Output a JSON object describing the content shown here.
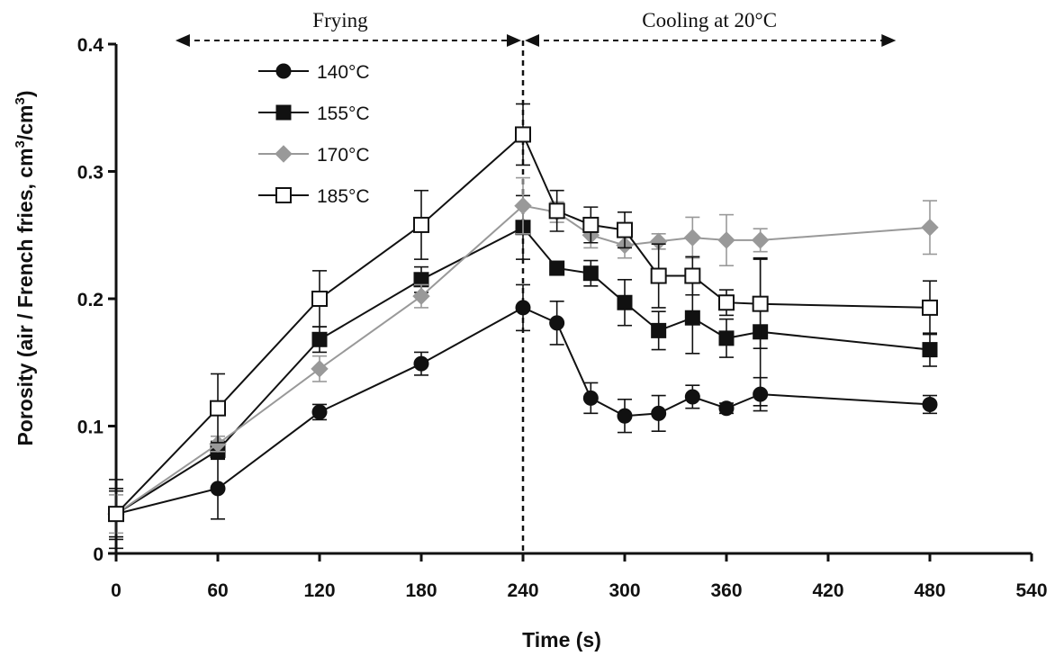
{
  "chart_data": {
    "type": "line",
    "xlabel": "Time (s)",
    "ylabel_main": "Porosity (air / French fries, cm",
    "ylabel_sup1": "3",
    "ylabel_mid": "/cm",
    "ylabel_sup2": "3",
    "ylabel_end": ")",
    "xlim": [
      0,
      540
    ],
    "ylim": [
      0,
      0.4
    ],
    "x_ticks": [
      0,
      60,
      120,
      180,
      240,
      300,
      360,
      420,
      480,
      540
    ],
    "x_tick_labels": [
      "0",
      "60",
      "120",
      "180",
      "240",
      "300",
      "360",
      "420",
      "480",
      "540"
    ],
    "y_ticks": [
      0,
      0.1,
      0.2,
      0.3,
      0.4
    ],
    "y_tick_labels": [
      "0",
      "0.1",
      "0.2",
      "0.3",
      "0.4"
    ],
    "grid": false,
    "legend_position": "top-left",
    "annotations": {
      "frying": {
        "text": "Frying",
        "from": 35,
        "to": 240
      },
      "cooling": {
        "text": "Cooling at 20°C",
        "from": 240,
        "to": 460
      },
      "divider_x": 240
    },
    "series": [
      {
        "name": "140°C",
        "marker": "circle",
        "color": "#111111",
        "x": [
          0,
          60,
          120,
          180,
          240,
          260,
          280,
          300,
          320,
          340,
          360,
          380,
          480
        ],
        "y": [
          0.031,
          0.051,
          0.111,
          0.149,
          0.193,
          0.181,
          0.122,
          0.108,
          0.11,
          0.123,
          0.114,
          0.125,
          0.117
        ],
        "err": [
          0.02,
          0.024,
          0.006,
          0.009,
          0.018,
          0.017,
          0.012,
          0.013,
          0.014,
          0.009,
          0.004,
          0.013,
          0.007
        ]
      },
      {
        "name": "155°C",
        "marker": "square-filled",
        "color": "#111111",
        "x": [
          0,
          60,
          120,
          180,
          240,
          260,
          280,
          300,
          320,
          340,
          360,
          380,
          480
        ],
        "y": [
          0.031,
          0.081,
          0.168,
          0.215,
          0.256,
          0.224,
          0.22,
          0.197,
          0.175,
          0.185,
          0.169,
          0.174,
          0.16
        ],
        "err": [
          0.018,
          0.007,
          0.01,
          0.01,
          0.025,
          0.005,
          0.01,
          0.018,
          0.015,
          0.028,
          0.015,
          0.058,
          0.013
        ]
      },
      {
        "name": "170°C",
        "marker": "diamond",
        "color": "#999999",
        "x": [
          0,
          60,
          120,
          180,
          240,
          260,
          280,
          300,
          320,
          340,
          360,
          380,
          480
        ],
        "y": [
          0.031,
          0.086,
          0.145,
          0.202,
          0.273,
          0.268,
          0.25,
          0.242,
          0.245,
          0.248,
          0.246,
          0.246,
          0.256
        ],
        "err": [
          0.015,
          0.006,
          0.01,
          0.009,
          0.022,
          0.008,
          0.01,
          0.01,
          0.006,
          0.016,
          0.02,
          0.009,
          0.021
        ]
      },
      {
        "name": "185°C",
        "marker": "square-open",
        "color": "#111111",
        "x": [
          0,
          60,
          120,
          180,
          240,
          260,
          280,
          300,
          320,
          340,
          360,
          380,
          480
        ],
        "y": [
          0.031,
          0.114,
          0.2,
          0.258,
          0.329,
          0.269,
          0.258,
          0.254,
          0.218,
          0.218,
          0.197,
          0.196,
          0.193
        ],
        "err": [
          0.027,
          0.027,
          0.022,
          0.027,
          0.024,
          0.016,
          0.014,
          0.014,
          0.025,
          0.015,
          0.01,
          0.035,
          0.021
        ]
      }
    ]
  }
}
